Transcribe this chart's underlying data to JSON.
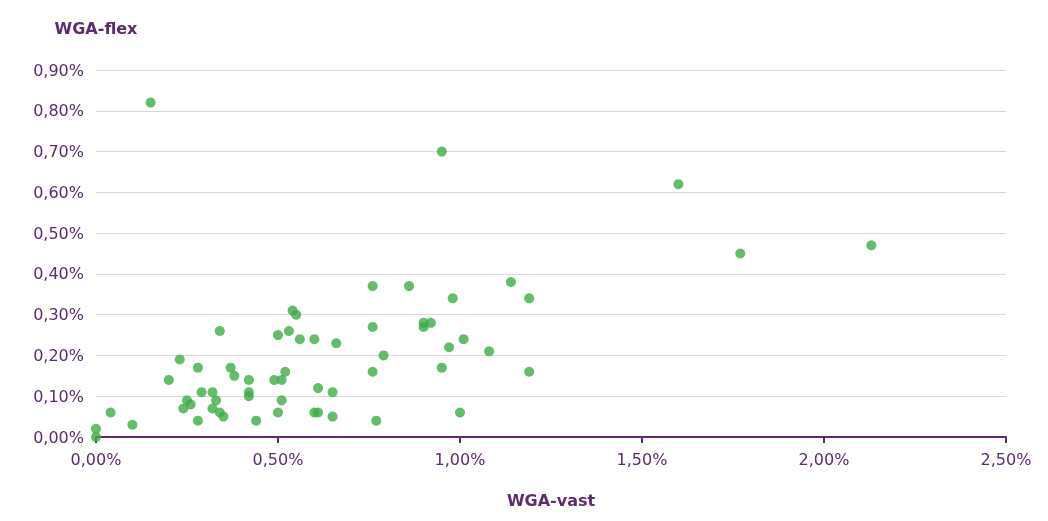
{
  "chart_data": {
    "type": "scatter",
    "xlabel": "WGA-vast",
    "ylabel": "WGA-flex",
    "x": [
      0,
      0,
      0.04,
      0.1,
      0.15,
      0.2,
      0.23,
      0.24,
      0.25,
      0.26,
      0.28,
      0.28,
      0.29,
      0.32,
      0.32,
      0.33,
      0.34,
      0.34,
      0.35,
      0.37,
      0.38,
      0.42,
      0.42,
      0.42,
      0.44,
      0.49,
      0.5,
      0.5,
      0.51,
      0.51,
      0.52,
      0.53,
      0.54,
      0.55,
      0.56,
      0.6,
      0.6,
      0.61,
      0.61,
      0.65,
      0.65,
      0.66,
      0.76,
      0.76,
      0.76,
      0.77,
      0.79,
      0.86,
      0.9,
      0.9,
      0.92,
      0.95,
      0.95,
      0.97,
      0.98,
      1.0,
      1.01,
      1.08,
      1.14,
      1.19,
      1.19,
      1.6,
      1.77,
      2.13
    ],
    "series": [
      {
        "color": "#3cac45",
        "values": [
          0,
          0.02,
          0.06,
          0.03,
          0.82,
          0.14,
          0.19,
          0.07,
          0.09,
          0.08,
          0.17,
          0.04,
          0.11,
          0.07,
          0.11,
          0.09,
          0.26,
          0.06,
          0.05,
          0.17,
          0.15,
          0.14,
          0.11,
          0.1,
          0.04,
          0.14,
          0.25,
          0.06,
          0.14,
          0.09,
          0.16,
          0.26,
          0.31,
          0.3,
          0.24,
          0.24,
          0.06,
          0.06,
          0.12,
          0.11,
          0.05,
          0.23,
          0.37,
          0.27,
          0.16,
          0.04,
          0.2,
          0.37,
          0.28,
          0.27,
          0.28,
          0.7,
          0.17,
          0.22,
          0.34,
          0.06,
          0.24,
          0.21,
          0.38,
          0.34,
          0.16,
          0.62,
          0.45,
          0.47
        ]
      }
    ],
    "xlim": [
      0,
      2.5
    ],
    "xticks": [
      {
        "value": 0,
        "label": "0,00%"
      },
      {
        "value": 0.5,
        "label": "0,50%"
      },
      {
        "value": 1,
        "label": "1,00%"
      },
      {
        "value": 1.5,
        "label": "1,50%"
      },
      {
        "value": 2,
        "label": "2,00%"
      },
      {
        "value": 2.5,
        "label": "2,50%"
      }
    ],
    "ylim": [
      0,
      0.9
    ],
    "yticks": [
      {
        "value": 0,
        "label": "0,00%"
      },
      {
        "value": 0.1,
        "label": "0,10%"
      },
      {
        "value": 0.2,
        "label": "0,20%"
      },
      {
        "value": 0.3,
        "label": "0,30%"
      },
      {
        "value": 0.4,
        "label": "0,40%"
      },
      {
        "value": 0.5,
        "label": "0,50%"
      },
      {
        "value": 0.6,
        "label": "0,60%"
      },
      {
        "value": 0.7,
        "label": "0,70%"
      },
      {
        "value": 0.8,
        "label": "0,80%"
      },
      {
        "value": 0.9,
        "label": "0,90%"
      }
    ],
    "grid": "y",
    "marker": "circle"
  }
}
